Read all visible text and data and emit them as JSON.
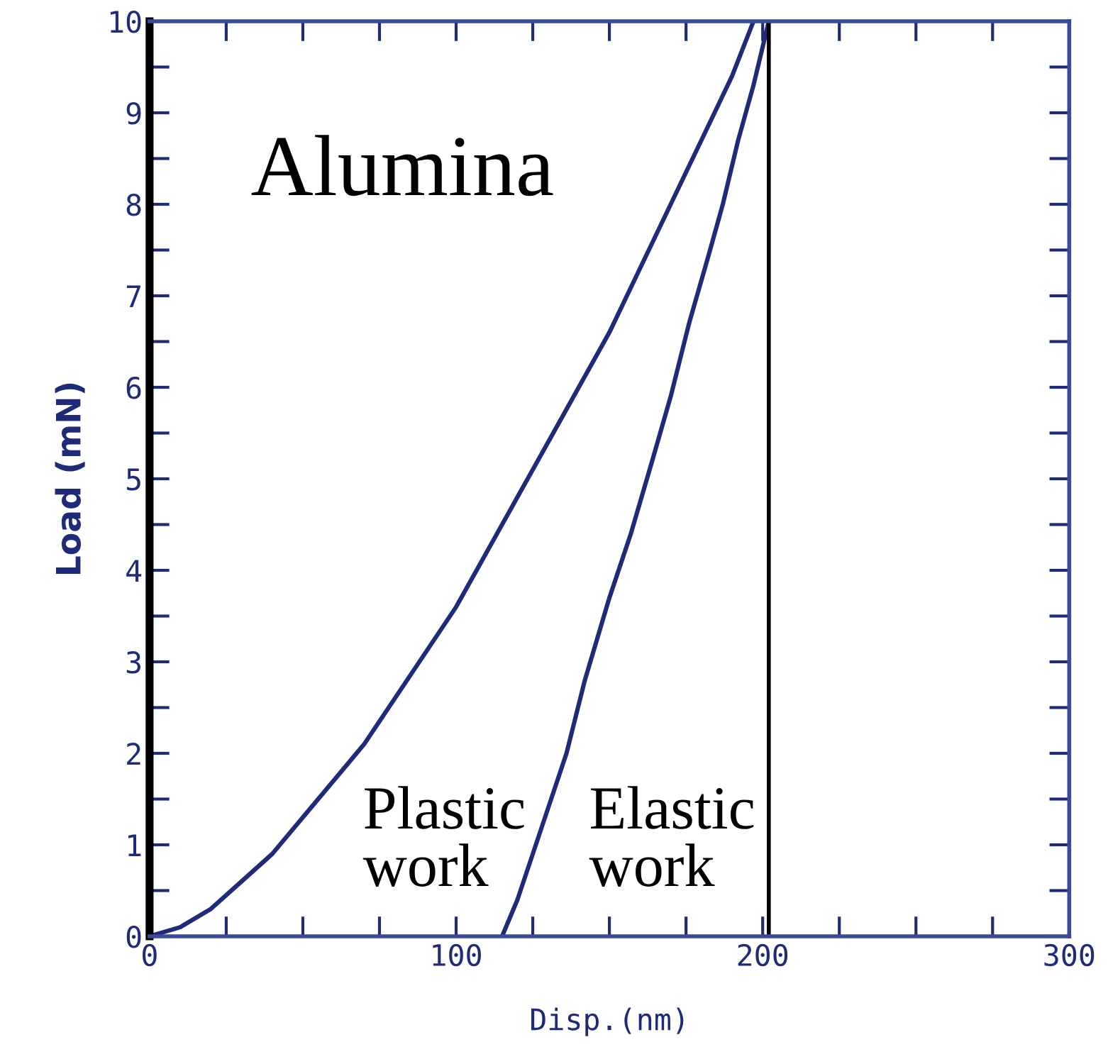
{
  "chart_data": {
    "type": "line",
    "xlabel": "Disp.(nm)",
    "ylabel": "Load (mN)",
    "series": [
      {
        "color": "#1f2a78",
        "x": [
          0,
          10,
          20,
          30,
          40,
          50,
          60,
          70,
          80,
          90,
          100,
          110,
          120,
          130,
          140,
          150,
          160,
          170,
          180,
          190,
          197
        ],
        "values": [
          0,
          0.1,
          0.3,
          0.6,
          0.9,
          1.3,
          1.7,
          2.1,
          2.6,
          3.1,
          3.6,
          4.2,
          4.8,
          5.4,
          6.0,
          6.6,
          7.3,
          8.0,
          8.7,
          9.4,
          10
        ]
      },
      {
        "color": "#1f2a78",
        "x": [
          115,
          120,
          125,
          130,
          136,
          142,
          150,
          157,
          164,
          170,
          176,
          182,
          187,
          192,
          197,
          202
        ],
        "values": [
          0,
          0.4,
          0.9,
          1.4,
          2,
          2.8,
          3.7,
          4.4,
          5.2,
          5.9,
          6.7,
          7.4,
          8,
          8.7,
          9.3,
          10
        ]
      }
    ],
    "ref_lines": [
      {
        "axis": "x",
        "value": 202,
        "color": "#000000"
      }
    ],
    "annotations": [
      "Alumina",
      "Plastic\nwork",
      "Elastic\nwork"
    ],
    "xlim": [
      0,
      300
    ],
    "ylim": [
      0,
      10
    ],
    "xticks": [
      0,
      {
        "value": 25,
        "label": null
      },
      {
        "value": 50,
        "label": null
      },
      {
        "value": 75,
        "label": null
      },
      100,
      {
        "value": 125,
        "label": null
      },
      {
        "value": 150,
        "label": null
      },
      {
        "value": 175,
        "label": null
      },
      200,
      {
        "value": 225,
        "label": null
      },
      {
        "value": 250,
        "label": null
      },
      {
        "value": 275,
        "label": null
      },
      300
    ],
    "yticks": [
      0,
      {
        "value": 0.5,
        "label": null
      },
      1,
      {
        "value": 1.5,
        "label": null
      },
      2,
      {
        "value": 2.5,
        "label": null
      },
      3,
      {
        "value": 3.5,
        "label": null
      },
      4,
      {
        "value": 4.5,
        "label": null
      },
      5,
      {
        "value": 5.5,
        "label": null
      },
      6,
      {
        "value": 6.5,
        "label": null
      },
      7,
      {
        "value": 7.5,
        "label": null
      },
      8,
      {
        "value": 8.5,
        "label": null
      },
      9,
      {
        "value": 9.5,
        "label": null
      },
      10
    ],
    "grid": false,
    "legend": false,
    "marker": "none",
    "line_style": "solid"
  }
}
